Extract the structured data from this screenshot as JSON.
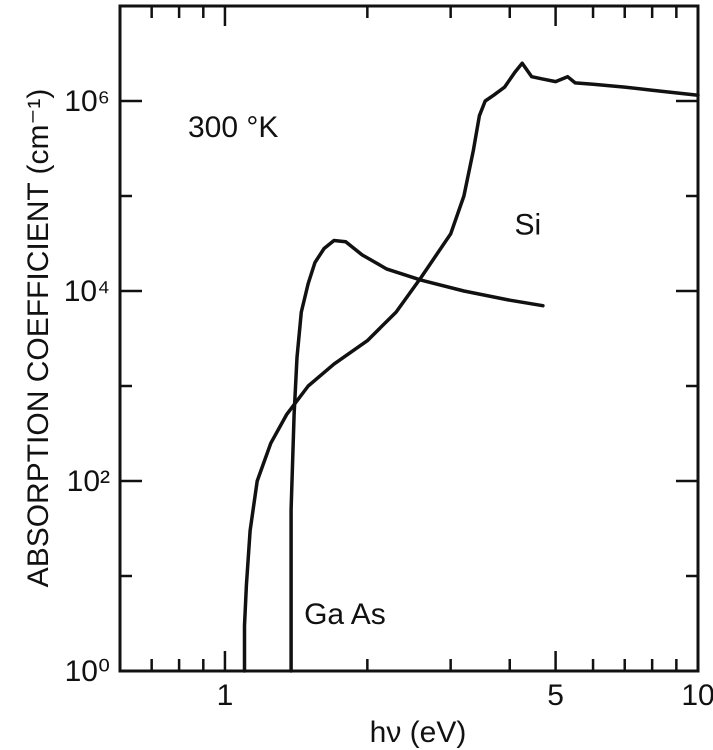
{
  "chart_data": {
    "type": "line",
    "title": "",
    "xlabel": "hν (eV)",
    "ylabel": "ABSORPTION COEFFICIENT (cm⁻¹)",
    "x_scale": "log",
    "y_scale": "log",
    "xlim": [
      0.6,
      10
    ],
    "ylim": [
      1,
      10000000
    ],
    "grid": false,
    "legend": "none",
    "x_ticks": [
      {
        "value": 1,
        "label": "1"
      },
      {
        "value": 5,
        "label": "5"
      },
      {
        "value": 10,
        "label": "10"
      }
    ],
    "y_ticks": [
      {
        "value": 1,
        "label": "10⁰"
      },
      {
        "value": 100,
        "label": "10²"
      },
      {
        "value": 10000,
        "label": "10⁴"
      },
      {
        "value": 1000000,
        "label": "10⁶"
      }
    ],
    "annotations": {
      "temperature": "300 °K"
    },
    "series": [
      {
        "name": "Si",
        "x": [
          1.1,
          1.1,
          1.11,
          1.13,
          1.17,
          1.25,
          1.35,
          1.5,
          1.7,
          2.0,
          2.3,
          2.6,
          3.0,
          3.2,
          3.35,
          3.45,
          3.55,
          3.7,
          3.9,
          4.1,
          4.25,
          4.45,
          4.7,
          5.0,
          5.3,
          5.5,
          6.0,
          7.0,
          8.0,
          10.0
        ],
        "y": [
          1,
          3,
          8,
          30,
          100,
          250,
          500,
          1000,
          1700,
          3000,
          6000,
          14000,
          40000,
          100000,
          300000,
          700000,
          1000000,
          1150000,
          1400000,
          2000000,
          2500000,
          1800000,
          1700000,
          1600000,
          1800000,
          1550000,
          1500000,
          1400000,
          1300000,
          1150000
        ]
      },
      {
        "name": "Ga As",
        "x": [
          1.38,
          1.38,
          1.4,
          1.42,
          1.45,
          1.5,
          1.55,
          1.62,
          1.7,
          1.8,
          1.95,
          2.2,
          2.6,
          3.2,
          4.0,
          4.7
        ],
        "y": [
          1,
          50,
          500,
          2000,
          6000,
          12000,
          20000,
          28000,
          34000,
          33000,
          24000,
          17000,
          13000,
          10000,
          8000,
          7000
        ]
      }
    ]
  }
}
